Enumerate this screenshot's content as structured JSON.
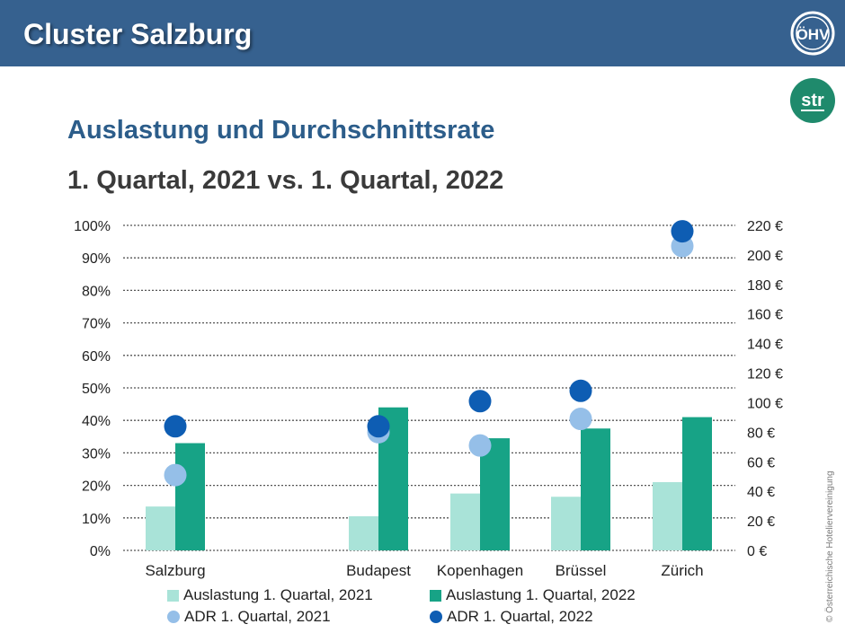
{
  "header": {
    "title": "Cluster Salzburg"
  },
  "logos": {
    "ohv": "ÖHV",
    "str": "str"
  },
  "colors": {
    "header_bg": "#36618f",
    "title": "#2c5d8a",
    "occ_2021": "#a9e3d8",
    "occ_2022": "#17a386",
    "adr_2021": "#95bfe8",
    "adr_2022": "#0e5db3"
  },
  "credit": "© Österreichische Hoteliervereinigung",
  "chart_data": {
    "type": "bar",
    "title": "Auslastung und Durchschnittsrate",
    "subtitle": "1. Quartal, 2021 vs. 1. Quartal, 2022",
    "categories": [
      "Salzburg",
      "",
      "Budapest",
      "Kopenhagen",
      "Brüssel",
      "Zürich"
    ],
    "y_left": {
      "ylim": [
        0,
        100
      ],
      "ticks": [
        "0%",
        "10%",
        "20%",
        "30%",
        "40%",
        "50%",
        "60%",
        "70%",
        "80%",
        "90%",
        "100%"
      ]
    },
    "y_right": {
      "ylim": [
        0,
        220
      ],
      "ticks": [
        "0 €",
        "20 €",
        "40 €",
        "60 €",
        "80 €",
        "100 €",
        "120 €",
        "140 €",
        "160 €",
        "180 €",
        "200 €",
        "220 €"
      ]
    },
    "grid": true,
    "legend_position": "bottom",
    "series": [
      {
        "name": "Auslastung 1. Quartal, 2021",
        "type": "bar",
        "axis": "left",
        "values": [
          13.5,
          null,
          10.5,
          17.5,
          16.5,
          21
        ]
      },
      {
        "name": "Auslastung 1. Quartal, 2022",
        "type": "bar",
        "axis": "left",
        "values": [
          33,
          null,
          44,
          34.5,
          37.5,
          41
        ]
      },
      {
        "name": "ADR 1. Quartal, 2021",
        "type": "scatter",
        "axis": "right",
        "values": [
          51,
          null,
          80,
          71,
          89,
          206
        ]
      },
      {
        "name": "ADR 1. Quartal, 2022",
        "type": "scatter",
        "axis": "right",
        "values": [
          84,
          null,
          84,
          101,
          108,
          216
        ]
      }
    ]
  }
}
